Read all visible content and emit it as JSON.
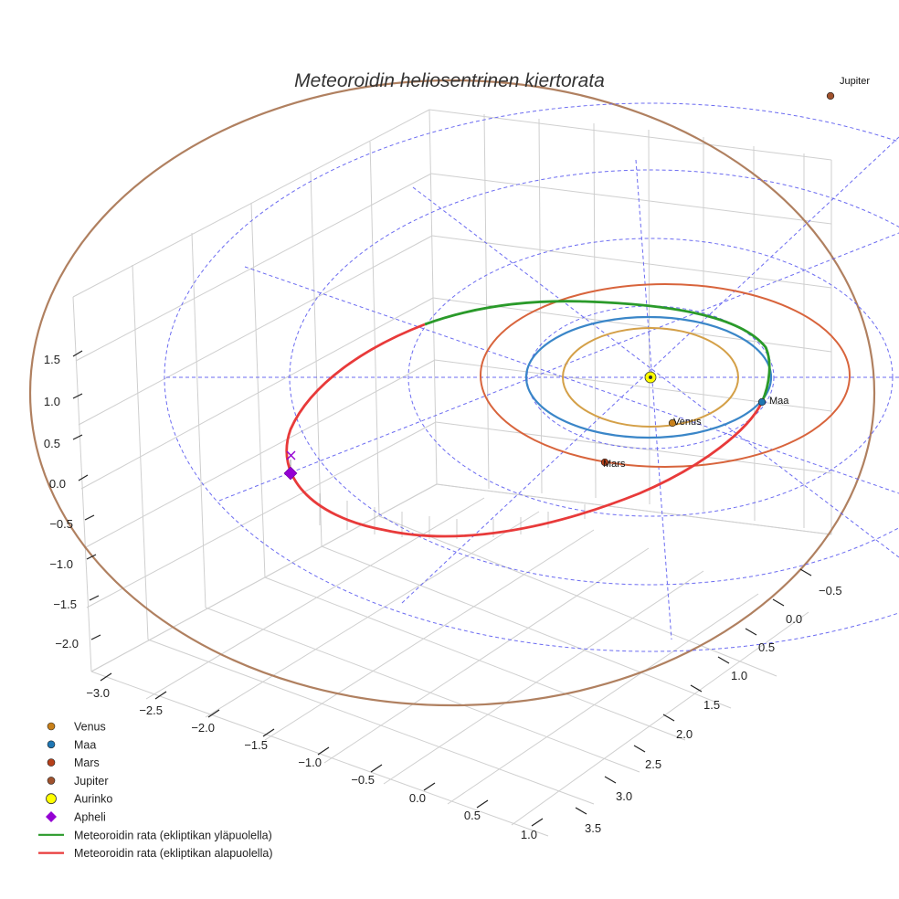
{
  "chart_data": {
    "type": "scatter3d",
    "title": "Meteoroidin heliosentrinen kiertorata",
    "axes": {
      "x_ticks": [
        "−3.0",
        "−2.5",
        "−2.0",
        "−1.5",
        "−1.0",
        "−0.5",
        "0.0",
        "0.5",
        "1.0"
      ],
      "y_ticks": [
        "−0.5",
        "0.0",
        "0.5",
        "1.0",
        "1.5",
        "2.0",
        "2.5",
        "3.0",
        "3.5"
      ],
      "z_ticks": [
        "1.5",
        "1.0",
        "0.5",
        "0.0",
        "−0.5",
        "−1.0",
        "−1.5",
        "−2.0"
      ],
      "x_range": [
        -3.2,
        1.2
      ],
      "y_range": [
        -0.8,
        3.6
      ],
      "z_range": [
        -2.2,
        1.8
      ]
    },
    "planets": [
      {
        "name": "Venus",
        "label": "Venus",
        "orbit_radius_au": 0.72,
        "color": "#d4a048",
        "marker_color": "#c8801a"
      },
      {
        "name": "Maa",
        "label": "Maa",
        "orbit_radius_au": 1.0,
        "color": "#3a86c8",
        "marker_color": "#1f77b4"
      },
      {
        "name": "Mars",
        "label": "Mars",
        "orbit_radius_au": 1.52,
        "color": "#d8643c",
        "marker_color": "#b6401a"
      },
      {
        "name": "Jupiter",
        "label": "Jupiter",
        "orbit_radius_au": 5.2,
        "color": "#b08060",
        "marker_color": "#a0522d"
      }
    ],
    "sun": {
      "name": "Aurinko",
      "color": "#ffff00"
    },
    "aphelion": {
      "name": "Apheli",
      "color": "#9400d3"
    },
    "meteoroid_orbit": {
      "above_ecliptic": {
        "name": "Meteoroidin rata (ekliptikan yläpuolella)",
        "color": "#2a9a2a"
      },
      "below_ecliptic": {
        "name": "Meteoroidin rata (ekliptikan alapuolella)",
        "color": "#e83a3a"
      }
    },
    "ecliptic_grid": {
      "style": "dashed",
      "color": "#5c5cf0"
    },
    "legend": {
      "position": "bottom-left",
      "entries": [
        {
          "label": "Venus",
          "kind": "dot",
          "color": "#c8801a"
        },
        {
          "label": "Maa",
          "kind": "dot",
          "color": "#1f77b4"
        },
        {
          "label": "Mars",
          "kind": "dot",
          "color": "#b6401a"
        },
        {
          "label": "Jupiter",
          "kind": "dot",
          "color": "#a0522d"
        },
        {
          "label": "Aurinko",
          "kind": "sun",
          "color": "#ffff00"
        },
        {
          "label": "Apheli",
          "kind": "diamond",
          "color": "#9400d3"
        },
        {
          "label": "Meteoroidin rata (ekliptikan yläpuolella)",
          "kind": "line",
          "color": "#2a9a2a"
        },
        {
          "label": "Meteoroidin rata (ekliptikan alapuolella)",
          "kind": "line",
          "color": "#e83a3a"
        }
      ]
    }
  }
}
